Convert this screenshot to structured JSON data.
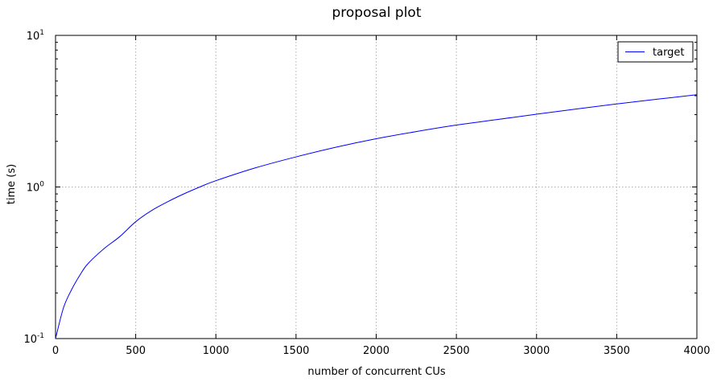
{
  "chart_data": {
    "type": "line",
    "title": "proposal plot",
    "xlabel": "number of concurrent CUs",
    "ylabel": "time (s)",
    "xlim": [
      0,
      4000
    ],
    "ylim": [
      0.1,
      10
    ],
    "yscale": "log",
    "grid": true,
    "legend_position": "top-right",
    "xticks": [
      0,
      500,
      1000,
      1500,
      2000,
      2500,
      3000,
      3500,
      4000
    ],
    "yticks": [
      {
        "value": 0.1,
        "base": "10",
        "exp": "-1"
      },
      {
        "value": 1,
        "base": "10",
        "exp": "0"
      },
      {
        "value": 10,
        "base": "10",
        "exp": "1"
      }
    ],
    "series": [
      {
        "name": "target",
        "color": "#0000ff",
        "x": [
          0,
          50,
          100,
          150,
          200,
          300,
          400,
          500,
          600,
          700,
          800,
          900,
          1000,
          1250,
          1500,
          1750,
          2000,
          2250,
          2500,
          2750,
          3000,
          3250,
          3500,
          3750,
          4000
        ],
        "y": [
          0.1,
          0.16,
          0.21,
          0.26,
          0.31,
          0.39,
          0.47,
          0.59,
          0.7,
          0.8,
          0.9,
          1.0,
          1.1,
          1.34,
          1.58,
          1.83,
          2.08,
          2.32,
          2.56,
          2.78,
          3.02,
          3.27,
          3.53,
          3.79,
          4.06
        ]
      }
    ]
  }
}
